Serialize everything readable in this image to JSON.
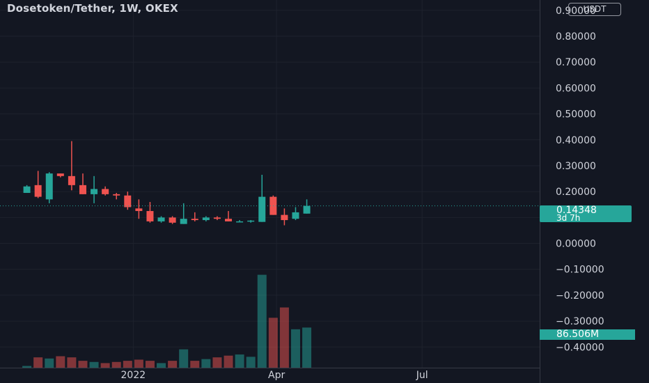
{
  "header": {
    "title": "Dosetoken/Tether, 1W, OKEX",
    "currency": "USDT"
  },
  "last_price": {
    "value": "0.14348",
    "countdown": "3d 7h"
  },
  "last_volume": {
    "value": "86.506M"
  },
  "colors": {
    "up": "#26a69a",
    "down": "#ef5350",
    "background": "#131722",
    "grid": "#1e222d",
    "text": "#d1d4dc"
  },
  "chart_data": {
    "type": "candlestick",
    "title": "Dosetoken/Tether, 1W, OKEX",
    "y_ticks": [
      "0.90000",
      "0.80000",
      "0.70000",
      "0.60000",
      "0.50000",
      "0.40000",
      "0.30000",
      "0.20000",
      "0.10000",
      "0.00000",
      "−0.10000",
      "−0.20000",
      "−0.30000",
      "−0.40000"
    ],
    "y_tick_values": [
      0.9,
      0.8,
      0.7,
      0.6,
      0.5,
      0.4,
      0.3,
      0.2,
      0.1,
      0.0,
      -0.1,
      -0.2,
      -0.3,
      -0.4
    ],
    "ylim": [
      -0.48,
      0.94
    ],
    "x_ticks": [
      {
        "label": "2022",
        "index": 9.5
      },
      {
        "label": "Apr",
        "index": 22.3
      },
      {
        "label": "Jul",
        "index": 35.3
      }
    ],
    "x_range": [
      -2.4,
      45.8
    ],
    "candles": [
      {
        "o": 0.195,
        "h": 0.225,
        "l": 0.195,
        "c": 0.22
      },
      {
        "o": 0.225,
        "h": 0.28,
        "l": 0.175,
        "c": 0.18
      },
      {
        "o": 0.17,
        "h": 0.275,
        "l": 0.155,
        "c": 0.27
      },
      {
        "o": 0.27,
        "h": 0.27,
        "l": 0.255,
        "c": 0.26
      },
      {
        "o": 0.26,
        "h": 0.395,
        "l": 0.205,
        "c": 0.225
      },
      {
        "o": 0.225,
        "h": 0.27,
        "l": 0.19,
        "c": 0.19
      },
      {
        "o": 0.19,
        "h": 0.26,
        "l": 0.155,
        "c": 0.21
      },
      {
        "o": 0.21,
        "h": 0.22,
        "l": 0.185,
        "c": 0.19
      },
      {
        "o": 0.19,
        "h": 0.195,
        "l": 0.17,
        "c": 0.185
      },
      {
        "o": 0.185,
        "h": 0.2,
        "l": 0.13,
        "c": 0.14
      },
      {
        "o": 0.135,
        "h": 0.17,
        "l": 0.095,
        "c": 0.125
      },
      {
        "o": 0.125,
        "h": 0.16,
        "l": 0.08,
        "c": 0.085
      },
      {
        "o": 0.085,
        "h": 0.105,
        "l": 0.08,
        "c": 0.1
      },
      {
        "o": 0.1,
        "h": 0.105,
        "l": 0.075,
        "c": 0.08
      },
      {
        "o": 0.075,
        "h": 0.155,
        "l": 0.075,
        "c": 0.095
      },
      {
        "o": 0.095,
        "h": 0.12,
        "l": 0.085,
        "c": 0.09
      },
      {
        "o": 0.09,
        "h": 0.105,
        "l": 0.085,
        "c": 0.1
      },
      {
        "o": 0.1,
        "h": 0.105,
        "l": 0.09,
        "c": 0.095
      },
      {
        "o": 0.095,
        "h": 0.125,
        "l": 0.085,
        "c": 0.085
      },
      {
        "o": 0.085,
        "h": 0.09,
        "l": 0.083,
        "c": 0.085
      },
      {
        "o": 0.085,
        "h": 0.09,
        "l": 0.08,
        "c": 0.088
      },
      {
        "o": 0.083,
        "h": 0.265,
        "l": 0.083,
        "c": 0.18
      },
      {
        "o": 0.18,
        "h": 0.185,
        "l": 0.11,
        "c": 0.11
      },
      {
        "o": 0.11,
        "h": 0.135,
        "l": 0.07,
        "c": 0.09
      },
      {
        "o": 0.095,
        "h": 0.14,
        "l": 0.09,
        "c": 0.12
      },
      {
        "o": 0.115,
        "h": 0.17,
        "l": 0.115,
        "c": 0.145
      }
    ],
    "volume": [
      3,
      18,
      16,
      20,
      18,
      12,
      10,
      8,
      10,
      12,
      14,
      12,
      8,
      12,
      32,
      12,
      15,
      18,
      21,
      23,
      19,
      162,
      87,
      105,
      67,
      70
    ],
    "volume_scale_max": 170
  }
}
